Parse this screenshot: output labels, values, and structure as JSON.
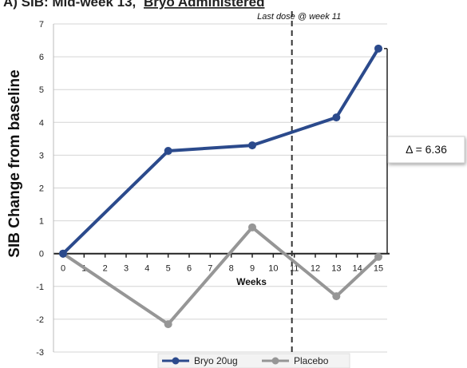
{
  "chart_data": {
    "type": "line",
    "title_prefix": "A) SIB: Mid-week 13,",
    "title_underlined": "Bryo Administered",
    "ylabel": "SIB Change from baseline",
    "xlabel": "Weeks",
    "ylim": [
      -3,
      7
    ],
    "yticks": [
      -3,
      -2,
      -1,
      0,
      1,
      2,
      3,
      4,
      5,
      6,
      7
    ],
    "xlim": [
      0,
      15
    ],
    "xticks": [
      0,
      1,
      2,
      3,
      4,
      5,
      6,
      7,
      8,
      9,
      10,
      11,
      12,
      13,
      14,
      15
    ],
    "grid": true,
    "legend_position": "bottom",
    "series": [
      {
        "name": "Bryo 20ug",
        "color": "#2b4a8c",
        "x": [
          0,
          5,
          9,
          13,
          15
        ],
        "y": [
          0,
          3.13,
          3.3,
          4.15,
          6.25
        ]
      },
      {
        "name": "Placebo",
        "color": "#969696",
        "x": [
          0,
          5,
          9,
          13,
          15
        ],
        "y": [
          0,
          -2.15,
          0.8,
          -1.3,
          -0.1
        ]
      }
    ],
    "annotations": {
      "last_dose_label": "Last dose @ week 11",
      "last_dose_week": 11,
      "delta_label": "Δ = 6.36"
    }
  }
}
